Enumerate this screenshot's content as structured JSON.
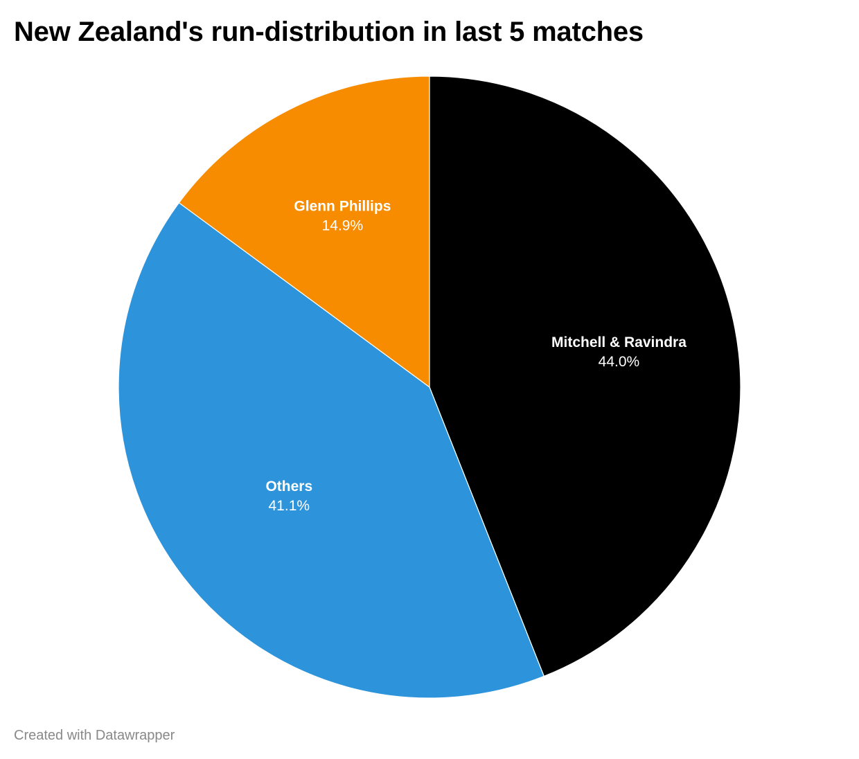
{
  "title": "New Zealand's run-distribution in last 5 matches",
  "credit": "Created with Datawrapper",
  "chart_data": {
    "type": "pie",
    "title": "New Zealand's run-distribution in last 5 matches",
    "slices": [
      {
        "label": "Mitchell & Ravindra",
        "value": 44.0,
        "display": "44.0%",
        "color": "#000000"
      },
      {
        "label": "Others",
        "value": 41.1,
        "display": "41.1%",
        "color": "#2d94dc"
      },
      {
        "label": "Glenn Phillips",
        "value": 14.9,
        "display": "14.9%",
        "color": "#f78c00"
      }
    ],
    "start_angle_deg": 0,
    "direction": "clockwise",
    "legend": "none",
    "labels": "inside"
  }
}
